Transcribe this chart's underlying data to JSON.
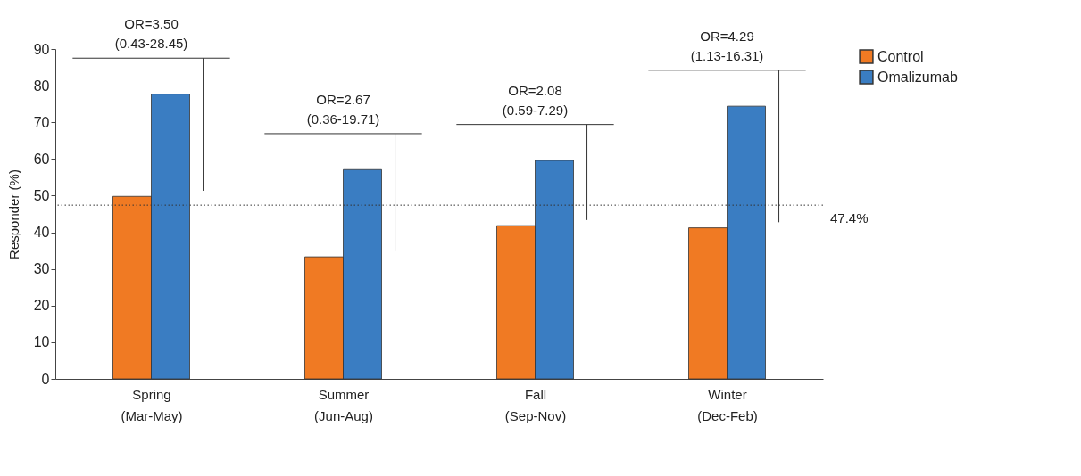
{
  "chart_data": {
    "type": "bar",
    "ylabel": "Responder (%)",
    "categories": [
      "Spring\n(Mar-May)",
      "Summer\n(Jun-Aug)",
      "Fall\n(Sep-Nov)",
      "Winter\n(Dec-Feb)"
    ],
    "series": [
      {
        "name": "Control",
        "color": "#f07a23",
        "values": [
          49.8,
          33.3,
          41.8,
          41.2
        ]
      },
      {
        "name": "Omalizumab",
        "color": "#3a7dc2",
        "values": [
          77.7,
          57.1,
          59.6,
          74.4
        ]
      }
    ],
    "ylim": [
      0,
      90
    ],
    "yticks": [
      0,
      10,
      20,
      30,
      40,
      50,
      60,
      70,
      80,
      90
    ],
    "grid": false,
    "legend": "top right",
    "ref_lines": [
      {
        "axis": "y",
        "value": 47.4,
        "label": "47.4%",
        "line_style": "dotted"
      }
    ],
    "annotations": [
      "OR=3.50\n(0.43-28.45)",
      "OR=2.67\n(0.36-19.71)",
      "OR=2.08\n(0.59-7.29)",
      "OR=4.29\n(1.13-16.31)"
    ]
  }
}
